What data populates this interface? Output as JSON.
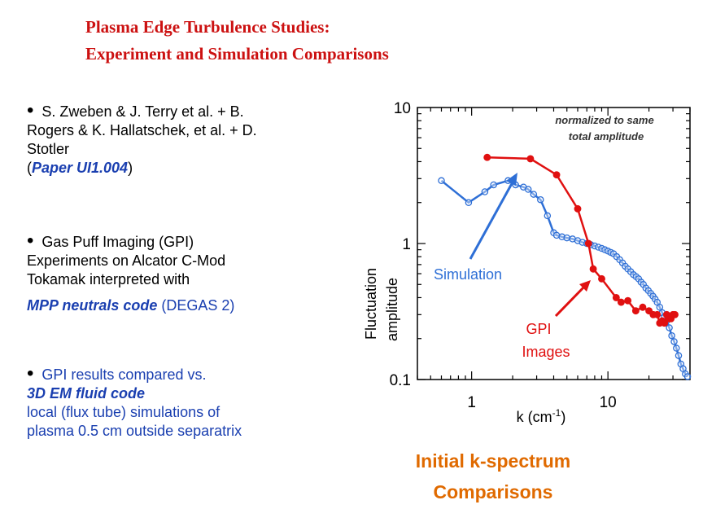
{
  "title_line1": "Plasma Edge Turbulence Studies:",
  "title_line2": "Experiment and Simulation Comparisons",
  "bullets": {
    "b1_a": "S. Zweben & J. Terry et al. + B.",
    "b1_b": "Rogers & K. Hallatschek, et al. + D.",
    "b1_c": "Stotler",
    "b1_paper": "Paper UI1.004",
    "b2_a": "Gas Puff Imaging (GPI)",
    "b2_b": "Experiments on Alcator C-Mod",
    "b2_c": "Tokamak interpreted with",
    "b2_mpp": "MPP neutrals code",
    "b2_tail": "(DEGAS 2)",
    "b3_a": "GPI results compared vs.",
    "b3_em": "3D EM fluid code",
    "b3_c": "local (flux tube) simulations of",
    "b3_d": "plasma 0.5 cm outside separatrix"
  },
  "caption_line1": "Initial k-spectrum",
  "caption_line2": "Comparisons",
  "colors": {
    "title": "#cc1111",
    "blue_text": "#1a3fb0",
    "simulation": "#2e6fd6",
    "gpi": "#e01010",
    "caption": "#e06a00"
  },
  "chart_data": {
    "type": "line",
    "xscale": "log",
    "yscale": "log",
    "xlim": [
      0.4,
      40
    ],
    "ylim": [
      0.1,
      10
    ],
    "x_ticks": [
      "1",
      "10"
    ],
    "y_ticks": [
      "10",
      "1",
      "0.1"
    ],
    "xlabel": "k (cm-1)",
    "xlabel_base": "k (cm",
    "xlabel_sup": "-1",
    "xlabel_end": ")",
    "ylabel_line1": "Fluctuation",
    "ylabel_line2": "amplitude",
    "annotation_line1": "normalized to same",
    "annotation_line2": "total amplitude",
    "series": [
      {
        "name": "Simulation",
        "color": "#2e6fd6",
        "marker": "open-circle",
        "x": [
          0.6,
          0.95,
          1.25,
          1.45,
          1.85,
          2.1,
          2.4,
          2.6,
          2.85,
          3.2,
          3.6,
          4.0,
          4.2,
          4.6,
          5.0,
          5.5,
          6.0,
          6.5,
          7.0,
          7.5,
          8.0,
          8.5,
          9.0,
          9.5,
          10.0,
          10.5,
          11.0,
          11.6,
          12.2,
          12.8,
          13.4,
          14.0,
          14.7,
          15.4,
          16.1,
          16.8,
          17.5,
          18.2,
          19.0,
          19.8,
          20.6,
          21.4,
          22.2,
          23.0,
          24.0,
          25.0,
          26.0,
          27.0,
          28.2,
          29.4,
          30.6,
          31.8,
          33.0,
          34.3,
          35.6,
          37.0,
          38.4
        ],
        "y": [
          2.9,
          2.0,
          2.4,
          2.7,
          2.9,
          2.7,
          2.6,
          2.5,
          2.3,
          2.1,
          1.6,
          1.2,
          1.15,
          1.12,
          1.1,
          1.08,
          1.05,
          1.02,
          1.0,
          0.98,
          0.96,
          0.94,
          0.92,
          0.9,
          0.88,
          0.86,
          0.84,
          0.8,
          0.76,
          0.72,
          0.68,
          0.65,
          0.62,
          0.59,
          0.57,
          0.55,
          0.52,
          0.5,
          0.47,
          0.45,
          0.43,
          0.41,
          0.39,
          0.37,
          0.34,
          0.31,
          0.29,
          0.27,
          0.24,
          0.21,
          0.19,
          0.17,
          0.15,
          0.13,
          0.12,
          0.11,
          0.105
        ]
      },
      {
        "name": "GPI Images",
        "color": "#e01010",
        "marker": "filled-circle",
        "x": [
          1.3,
          2.7,
          4.2,
          6.0,
          7.2,
          7.8,
          9.0,
          11.5,
          12.5,
          14.0,
          16.0,
          18.0,
          20.0,
          21.5,
          23.0,
          24.0,
          25.0,
          26.0,
          27.0,
          28.0,
          29.0,
          30.0,
          31.0
        ],
        "y": [
          4.3,
          4.2,
          3.2,
          1.8,
          1.0,
          0.65,
          0.55,
          0.4,
          0.37,
          0.38,
          0.32,
          0.34,
          0.32,
          0.3,
          0.3,
          0.26,
          0.27,
          0.26,
          0.3,
          0.28,
          0.28,
          0.3,
          0.3
        ]
      }
    ],
    "labels": {
      "simulation": "Simulation",
      "gpi_line1": "GPI",
      "gpi_line2": "Images"
    }
  }
}
